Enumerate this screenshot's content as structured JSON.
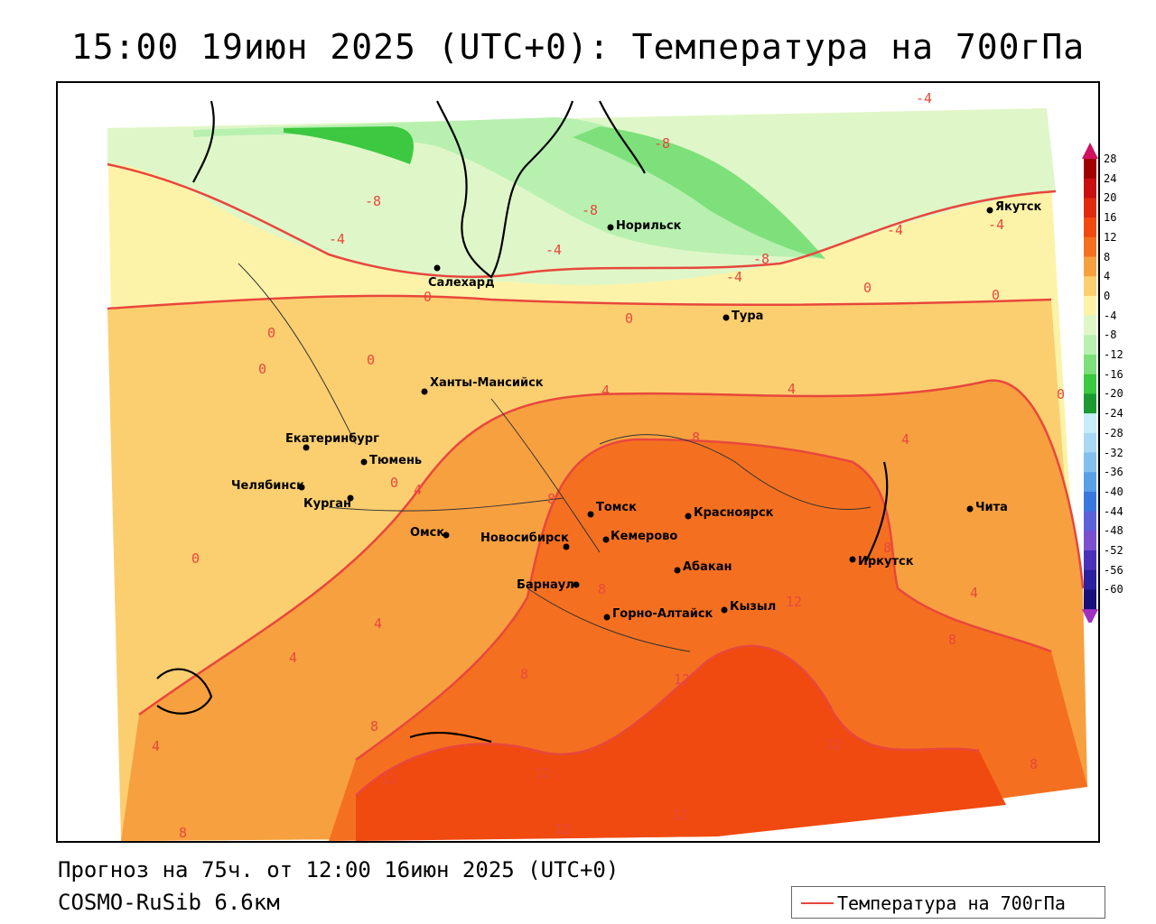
{
  "title": "15:00 19июн 2025 (UTC+0): Температура на 700гПа",
  "footer": {
    "forecast": "Прогноз на 75ч. от 12:00 16июн 2025 (UTC+0)",
    "model": "COSMO-RuSib 6.6км"
  },
  "legend": {
    "label": "Температура на 700гПа",
    "line_color": "#e8473d"
  },
  "colorbar": {
    "labels": [
      "28",
      "24",
      "20",
      "16",
      "12",
      "8",
      "4",
      "0",
      "-4",
      "-8",
      "-12",
      "-16",
      "-20",
      "-24",
      "-28",
      "-32",
      "-36",
      "-40",
      "-44",
      "-48",
      "-52",
      "-56",
      "-60"
    ],
    "colors": [
      "#a00000",
      "#c81010",
      "#e02a10",
      "#f04a10",
      "#f47020",
      "#f7a040",
      "#fbcf70",
      "#fdf3a8",
      "#dff7c8",
      "#b8f0b0",
      "#7ee07a",
      "#3cc840",
      "#1a9a30",
      "#c8ecf8",
      "#a8d8f4",
      "#84c0ee",
      "#5aa0e6",
      "#3a78e0",
      "#5e60d8",
      "#7a50d0",
      "#4a30b8",
      "#2a20a0",
      "#18107a"
    ]
  },
  "cities": [
    {
      "name": "Якутск"
    },
    {
      "name": "Норильск"
    },
    {
      "name": "Салехард"
    },
    {
      "name": "Тура"
    },
    {
      "name": "Ханты-Мансийск"
    },
    {
      "name": "Екатеринбург"
    },
    {
      "name": "Тюмень"
    },
    {
      "name": "Челябинск"
    },
    {
      "name": "Курган"
    },
    {
      "name": "Омск"
    },
    {
      "name": "Новосибирск"
    },
    {
      "name": "Томск"
    },
    {
      "name": "Кемерово"
    },
    {
      "name": "Красноярск"
    },
    {
      "name": "Барнаул"
    },
    {
      "name": "Абакан"
    },
    {
      "name": "Горно-Алтайск"
    },
    {
      "name": "Кызыл"
    },
    {
      "name": "Иркутск"
    },
    {
      "name": "Чита"
    }
  ],
  "contour_labels": [
    "-4",
    "-8",
    "-8",
    "-8",
    "-4",
    "-4",
    "-4",
    "-8",
    "-4",
    "-4",
    "0",
    "0",
    "0",
    "0",
    "0",
    "0",
    "0",
    "0",
    "0",
    "0",
    "4",
    "4",
    "4",
    "4",
    "4",
    "4",
    "4",
    "4",
    "8",
    "8",
    "8",
    "8",
    "8",
    "8",
    "8",
    "8",
    "8",
    "12",
    "12",
    "12",
    "12",
    "12",
    "12",
    "12"
  ]
}
